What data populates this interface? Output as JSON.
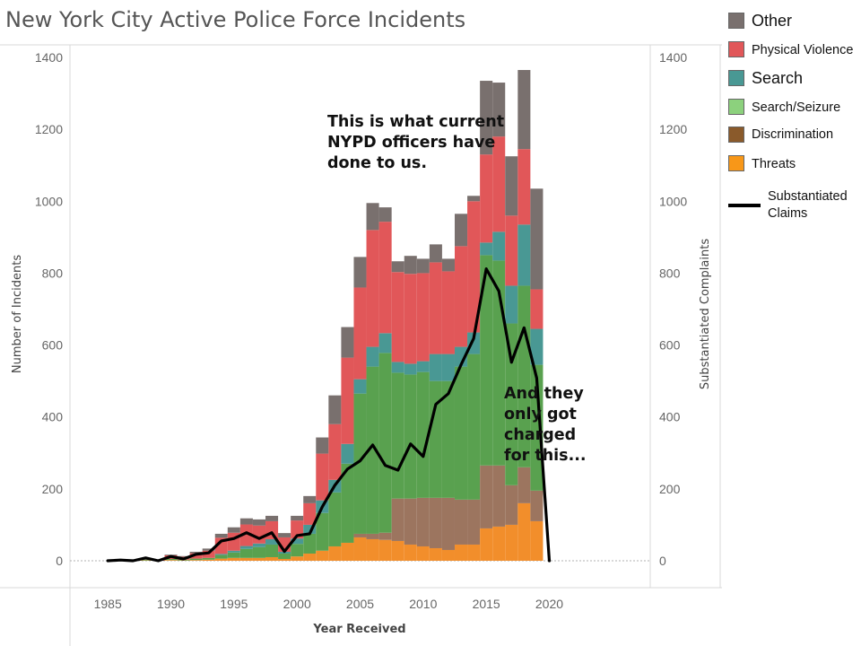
{
  "chart_data": {
    "type": "bar",
    "title": "New York City Active Police Force Incidents",
    "xlabel": "Year Received",
    "ylabel": "Number of Incidents",
    "y2label": "Substantiated Complaints",
    "xlim": [
      1982,
      2028
    ],
    "ylim": [
      0,
      1400
    ],
    "y2lim": [
      0,
      1400
    ],
    "x_ticks": [
      "1985",
      "1990",
      "1995",
      "2000",
      "2005",
      "2010",
      "2015",
      "2020"
    ],
    "y_ticks": [
      "0",
      "200",
      "400",
      "600",
      "800",
      "1000",
      "1200",
      "1400"
    ],
    "y2_ticks": [
      "0",
      "200",
      "400",
      "600",
      "800",
      "1000",
      "1200",
      "1400"
    ],
    "stacked": true,
    "grid": false,
    "legend_position": "right",
    "years": [
      1985,
      1986,
      1987,
      1988,
      1989,
      1990,
      1991,
      1992,
      1993,
      1994,
      1995,
      1996,
      1997,
      1998,
      1999,
      2000,
      2001,
      2002,
      2003,
      2004,
      2005,
      2006,
      2007,
      2008,
      2009,
      2010,
      2011,
      2012,
      2013,
      2014,
      2015,
      2016,
      2017,
      2018,
      2019,
      2020
    ],
    "series": [
      {
        "name": "Threats",
        "color": "#F28E2B",
        "values": [
          0,
          0,
          0,
          1,
          0,
          2,
          1,
          2,
          3,
          6,
          8,
          8,
          8,
          10,
          5,
          12,
          20,
          28,
          40,
          50,
          65,
          60,
          58,
          55,
          45,
          40,
          35,
          30,
          45,
          45,
          90,
          95,
          100,
          160,
          110,
          0
        ]
      },
      {
        "name": "Discrimination",
        "color": "#9C755F",
        "values": [
          0,
          0,
          0,
          0,
          0,
          0,
          0,
          0,
          0,
          0,
          0,
          0,
          0,
          0,
          0,
          0,
          0,
          0,
          0,
          0,
          10,
          15,
          20,
          118,
          128,
          135,
          140,
          145,
          125,
          125,
          175,
          170,
          110,
          100,
          85,
          0
        ]
      },
      {
        "name": "Search/Seizure",
        "color": "#59A14F",
        "values": [
          0,
          0,
          0,
          2,
          0,
          3,
          2,
          4,
          5,
          10,
          15,
          25,
          30,
          35,
          15,
          35,
          55,
          105,
          150,
          220,
          390,
          465,
          500,
          350,
          345,
          350,
          325,
          325,
          370,
          405,
          585,
          570,
          450,
          505,
          350,
          0
        ]
      },
      {
        "name": "Search",
        "color": "#499894",
        "values": [
          0,
          0,
          0,
          0,
          0,
          0,
          0,
          0,
          0,
          3,
          5,
          8,
          10,
          15,
          5,
          15,
          25,
          35,
          35,
          55,
          40,
          55,
          55,
          30,
          30,
          30,
          75,
          75,
          55,
          60,
          35,
          80,
          105,
          170,
          100,
          0
        ]
      },
      {
        "name": "Physical Violence",
        "color": "#E15759",
        "values": [
          0,
          0,
          0,
          0,
          2,
          10,
          8,
          15,
          20,
          45,
          50,
          60,
          50,
          50,
          40,
          50,
          60,
          130,
          155,
          240,
          255,
          325,
          310,
          250,
          250,
          245,
          255,
          230,
          280,
          365,
          245,
          265,
          195,
          210,
          110,
          0
        ]
      },
      {
        "name": "Other",
        "color": "#79706E",
        "values": [
          0,
          0,
          0,
          1,
          1,
          2,
          2,
          4,
          6,
          11,
          15,
          17,
          17,
          15,
          12,
          13,
          20,
          45,
          80,
          85,
          85,
          75,
          40,
          30,
          50,
          40,
          50,
          35,
          90,
          15,
          205,
          150,
          165,
          220,
          280,
          0
        ]
      }
    ],
    "line_series": {
      "name": "Substantiated Claims",
      "color": "#000000",
      "values": [
        0,
        2,
        0,
        8,
        0,
        12,
        5,
        18,
        22,
        55,
        62,
        78,
        62,
        78,
        26,
        70,
        75,
        150,
        210,
        255,
        278,
        322,
        265,
        252,
        325,
        290,
        435,
        465,
        545,
        618,
        812,
        750,
        552,
        648,
        508,
        0
      ]
    }
  },
  "legend": {
    "items": [
      {
        "label": "Other",
        "color": "#79706E"
      },
      {
        "label": "Physical Violence",
        "color": "#E15759"
      },
      {
        "label": "Search",
        "color": "#499894"
      },
      {
        "label": "Search/Seizure",
        "color": "#8CD17D"
      },
      {
        "label": "Discrimination",
        "color": "#8A5A2B"
      },
      {
        "label": "Threats",
        "color": "#F89718"
      }
    ],
    "line_label_1": "Substantiated",
    "line_label_2": "Claims"
  },
  "annotations": {
    "top": [
      "This is what current",
      "NYPD officers have",
      "done to us."
    ],
    "bottom": [
      "And they",
      "only got",
      "charged",
      "for this..."
    ]
  }
}
